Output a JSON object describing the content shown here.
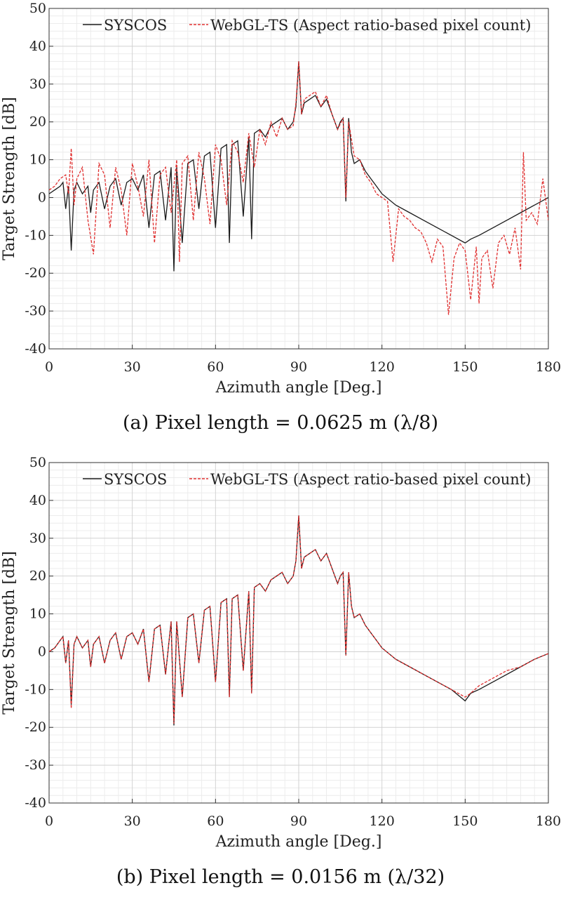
{
  "chart_data": [
    {
      "type": "line",
      "caption": "(a)  Pixel  length  =  0.0625  m  (λ/8)",
      "xlabel": "Azimuth angle [Deg.]",
      "ylabel": "Target Strength [dB]",
      "xlim": [
        0,
        180
      ],
      "ylim": [
        -40,
        50
      ],
      "xticks": [
        0,
        30,
        60,
        90,
        120,
        150,
        180
      ],
      "yticks": [
        50,
        40,
        30,
        20,
        10,
        0,
        -10,
        -20,
        -30,
        -40
      ],
      "grid": "major and minor",
      "legend": "top, horizontal",
      "series": [
        {
          "name": "SYSCOS",
          "color": "#1a1a1a",
          "style": "solid",
          "x": [
            0,
            2,
            4,
            5,
            6,
            7,
            8,
            9,
            10,
            12,
            14,
            15,
            16,
            18,
            20,
            22,
            24,
            26,
            28,
            30,
            32,
            34,
            36,
            38,
            40,
            42,
            44,
            45,
            46,
            48,
            50,
            52,
            54,
            56,
            58,
            60,
            62,
            64,
            65,
            66,
            68,
            70,
            72,
            73,
            74,
            76,
            78,
            80,
            82,
            84,
            86,
            88,
            89,
            90,
            91,
            92,
            94,
            96,
            98,
            100,
            102,
            104,
            105,
            106,
            107,
            108,
            109,
            110,
            112,
            114,
            116,
            118,
            120,
            125,
            130,
            135,
            140,
            145,
            150,
            152,
            155,
            160,
            165,
            170,
            175,
            180
          ],
          "y": [
            1,
            2,
            3,
            4,
            -3,
            3,
            -14,
            2,
            4,
            1,
            3,
            -4,
            2,
            4,
            -3,
            3,
            5,
            -2,
            4,
            5,
            2,
            6,
            -8,
            6,
            7,
            -6,
            8,
            -19.5,
            8,
            -12,
            9,
            10,
            -3,
            11,
            12,
            -8,
            13,
            14,
            -12,
            14,
            15,
            -5,
            16,
            -11,
            17,
            18,
            16,
            19,
            20,
            21,
            18,
            20,
            24,
            36,
            22,
            25,
            26,
            27,
            24,
            26,
            22,
            18,
            20,
            21,
            -1,
            21,
            12,
            9,
            10,
            7,
            5,
            3,
            1,
            -2,
            -4,
            -6,
            -8,
            -10,
            -12,
            -11,
            -10,
            -8,
            -6,
            -4,
            -2,
            0
          ]
        },
        {
          "name": "WebGL-TS (Aspect ratio-based pixel count)",
          "color": "#e03030",
          "style": "dashed",
          "x": [
            0,
            2,
            4,
            6,
            7,
            8,
            9,
            10,
            12,
            14,
            16,
            18,
            20,
            22,
            24,
            26,
            28,
            30,
            32,
            34,
            36,
            38,
            40,
            42,
            44,
            46,
            47,
            48,
            50,
            52,
            54,
            56,
            58,
            60,
            62,
            64,
            66,
            68,
            70,
            72,
            74,
            76,
            78,
            80,
            82,
            84,
            86,
            88,
            89,
            90,
            91,
            92,
            94,
            96,
            98,
            100,
            102,
            104,
            106,
            107,
            108,
            110,
            112,
            114,
            116,
            118,
            120,
            122,
            124,
            126,
            128,
            130,
            132,
            134,
            136,
            138,
            140,
            142,
            144,
            146,
            148,
            150,
            152,
            154,
            155,
            156,
            158,
            160,
            162,
            164,
            166,
            168,
            170,
            171,
            172,
            174,
            176,
            178,
            180
          ],
          "y": [
            2,
            3,
            5,
            6,
            1,
            13,
            -2,
            5,
            8,
            -6,
            -15,
            9,
            6,
            -8,
            8,
            2,
            -10,
            9,
            3,
            -5,
            10,
            -12,
            6,
            8,
            -4,
            10,
            -17,
            9,
            11,
            -6,
            12,
            5,
            -7,
            14,
            10,
            -2,
            15,
            12,
            4,
            17,
            8,
            18,
            14,
            20,
            16,
            21,
            18,
            19,
            25,
            36,
            22,
            26,
            27,
            28,
            24,
            27,
            22,
            18,
            21,
            0,
            20,
            11,
            10,
            6,
            4,
            1,
            0,
            -1,
            -17,
            -3,
            -5,
            -6,
            -8,
            -9,
            -12,
            -17,
            -11,
            -13,
            -31,
            -16,
            -12,
            -14,
            -27,
            -13,
            -28,
            -16,
            -14,
            -24,
            -12,
            -10,
            -15,
            -8,
            -19,
            12,
            -6,
            -4,
            -7,
            5,
            -6
          ]
        }
      ]
    },
    {
      "type": "line",
      "caption": "(b)  Pixel  length  =  0.0156  m  (λ/32)",
      "xlabel": "Azimuth angle [Deg.]",
      "ylabel": "Target Strength [dB]",
      "xlim": [
        0,
        180
      ],
      "ylim": [
        -40,
        50
      ],
      "xticks": [
        0,
        30,
        60,
        90,
        120,
        150,
        180
      ],
      "yticks": [
        50,
        40,
        30,
        20,
        10,
        0,
        -10,
        -20,
        -30,
        -40
      ],
      "grid": "major and minor",
      "legend": "top, horizontal",
      "series": [
        {
          "name": "SYSCOS",
          "color": "#1a1a1a",
          "style": "solid",
          "x": [
            0,
            2,
            4,
            5,
            6,
            7,
            8,
            9,
            10,
            12,
            14,
            15,
            16,
            18,
            20,
            22,
            24,
            26,
            28,
            30,
            32,
            34,
            36,
            38,
            40,
            42,
            44,
            45,
            46,
            48,
            50,
            52,
            54,
            56,
            58,
            60,
            62,
            64,
            65,
            66,
            68,
            70,
            72,
            73,
            74,
            76,
            78,
            80,
            82,
            84,
            86,
            88,
            89,
            90,
            91,
            92,
            94,
            96,
            98,
            100,
            102,
            104,
            105,
            106,
            107,
            108,
            109,
            110,
            112,
            114,
            116,
            118,
            120,
            125,
            130,
            135,
            140,
            145,
            150,
            152,
            155,
            160,
            165,
            170,
            175,
            180
          ],
          "y": [
            0,
            1,
            3,
            4,
            -3,
            3,
            -14,
            2,
            4,
            1,
            3,
            -4,
            2,
            4,
            -3,
            3,
            5,
            -2,
            4,
            5,
            2,
            6,
            -8,
            6,
            7,
            -6,
            8,
            -19.5,
            8,
            -12,
            9,
            10,
            -3,
            11,
            12,
            -8,
            13,
            14,
            -12,
            14,
            15,
            -5,
            16,
            -11,
            17,
            18,
            16,
            19,
            20,
            21,
            18,
            20,
            24,
            36,
            22,
            25,
            26,
            27,
            24,
            26,
            22,
            18,
            20,
            21,
            -1,
            21,
            12,
            9,
            10,
            7,
            5,
            3,
            1,
            -2,
            -4,
            -6,
            -8,
            -10,
            -13,
            -11,
            -10,
            -8,
            -6,
            -4,
            -2,
            -0.5
          ]
        },
        {
          "name": "WebGL-TS (Aspect ratio-based pixel count)",
          "color": "#e03030",
          "style": "dashed",
          "x": [
            0,
            2,
            4,
            5,
            6,
            7,
            8,
            9,
            10,
            12,
            14,
            15,
            16,
            18,
            20,
            22,
            24,
            26,
            28,
            30,
            32,
            34,
            36,
            38,
            40,
            42,
            44,
            45,
            46,
            48,
            50,
            52,
            54,
            56,
            58,
            60,
            62,
            64,
            65,
            66,
            68,
            70,
            72,
            73,
            74,
            76,
            78,
            80,
            82,
            84,
            86,
            88,
            89,
            90,
            91,
            92,
            94,
            96,
            98,
            100,
            102,
            104,
            105,
            106,
            107,
            108,
            109,
            110,
            112,
            114,
            116,
            118,
            120,
            125,
            130,
            135,
            140,
            145,
            150,
            152,
            155,
            160,
            165,
            170,
            175,
            180
          ],
          "y": [
            0,
            1,
            3,
            4,
            -3,
            3,
            -15,
            2,
            4,
            1,
            3,
            -4,
            2,
            4,
            -3,
            3,
            5,
            -2,
            4,
            5,
            2,
            6,
            -8,
            6,
            7,
            -6,
            8,
            -19,
            8,
            -12,
            9,
            10,
            -3,
            11,
            12,
            -8,
            13,
            14,
            -12,
            14,
            15,
            -5,
            16,
            -11,
            17,
            18,
            16,
            19,
            20,
            21,
            18,
            20,
            24,
            36,
            22,
            25,
            26,
            27,
            24,
            26,
            22,
            18,
            20,
            21,
            -1,
            21,
            12,
            9,
            10,
            7,
            5,
            3,
            1,
            -2,
            -4,
            -6,
            -8,
            -10,
            -12,
            -11,
            -9,
            -7,
            -5,
            -4,
            -2,
            -0.5
          ]
        }
      ]
    }
  ]
}
